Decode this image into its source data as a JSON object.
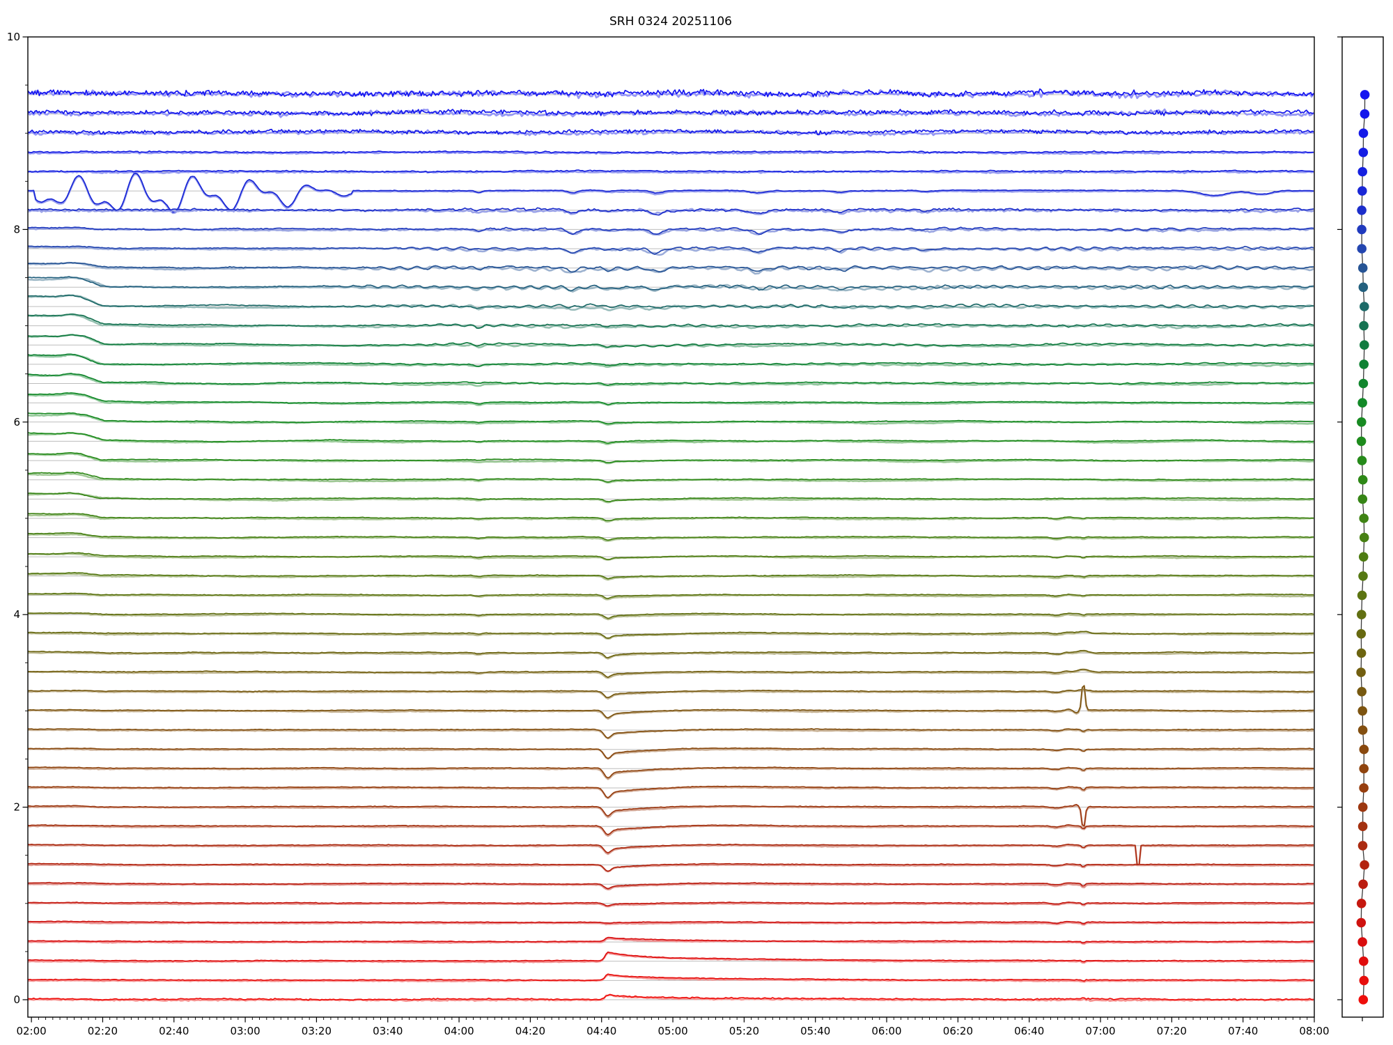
{
  "page": {
    "title": "SRH 0324 20251106"
  },
  "chart_data": {
    "type": "line",
    "title": "SRH 0324 20251106",
    "description": "Multi-frequency correlation time-series plot (48 stacked traces, blue=top frequency to red=bottom) with a side panel of per-trace mean dots",
    "x_tick_labels": [
      "02:00",
      "02:20",
      "02:40",
      "03:00",
      "03:20",
      "03:40",
      "04:00",
      "04:20",
      "04:40",
      "05:00",
      "05:20",
      "05:40",
      "06:00",
      "06:20",
      "06:40",
      "07:00",
      "07:20",
      "07:40",
      "08:00"
    ],
    "x_minor_tick_minutes": 2,
    "x_range_minutes": {
      "start": 119,
      "end": 480
    },
    "y_ticks": [
      0,
      2,
      4,
      6,
      8,
      10
    ],
    "y_minor_tick": 0.5,
    "ylim": [
      -0.18,
      10.0
    ],
    "n_traces": 48,
    "trace_top_value": 9.4,
    "trace_offset_step": 0.2,
    "baseline_color": "#bdbdbd",
    "axis_color": "#000000",
    "side_panel_line_color": "#3a3a3a",
    "dot_radius": 6.8,
    "color_stops": [
      [
        0,
        "#1414f0"
      ],
      [
        4,
        "#1520e0"
      ],
      [
        6,
        "#1c2ecb"
      ],
      [
        8,
        "#2446b0"
      ],
      [
        9,
        "#265495"
      ],
      [
        10,
        "#23607e"
      ],
      [
        11,
        "#1d6a68"
      ],
      [
        12,
        "#167352"
      ],
      [
        13,
        "#117b40"
      ],
      [
        14,
        "#0f8233"
      ],
      [
        16,
        "#128927"
      ],
      [
        18,
        "#1e8b1d"
      ],
      [
        20,
        "#2e8817"
      ],
      [
        23,
        "#478013"
      ],
      [
        26,
        "#5c7411"
      ],
      [
        29,
        "#6c6410"
      ],
      [
        32,
        "#7d5410"
      ],
      [
        35,
        "#8f440f"
      ],
      [
        38,
        "#a33110"
      ],
      [
        41,
        "#bb1d10"
      ],
      [
        44,
        "#d90d0e"
      ],
      [
        47,
        "#ee0e0b"
      ]
    ],
    "trace_fields": [
      "value",
      "hf_noise",
      "slow_drift",
      "wiggle_amp",
      "start_hump",
      "dip_0442_amp",
      "spike_0655_amp",
      "upper_dip_factor",
      "special"
    ],
    "traces": [
      [
        9.4,
        0.03,
        0.013,
        0,
        0,
        0,
        0,
        0,
        0
      ],
      [
        9.2,
        0.024,
        0.012,
        0,
        0,
        0,
        0,
        0,
        0
      ],
      [
        9.0,
        0.019,
        0.012,
        0,
        0,
        0,
        0,
        0,
        0
      ],
      [
        8.8,
        0.008,
        0.006,
        0,
        0,
        0,
        0,
        0,
        0
      ],
      [
        8.6,
        0.007,
        0.006,
        0,
        0,
        0,
        0,
        0,
        0
      ],
      [
        8.4,
        0.004,
        0.004,
        0,
        0,
        -0.01,
        0,
        0.55,
        1
      ],
      [
        8.2,
        0.01,
        0.006,
        0.007,
        0,
        -0.012,
        0,
        0.8,
        0
      ],
      [
        8.0,
        0.006,
        0.007,
        0.009,
        0.012,
        -0.015,
        0,
        1.0,
        0
      ],
      [
        7.8,
        0.005,
        0.008,
        0.012,
        0.02,
        -0.018,
        0,
        1.0,
        0
      ],
      [
        7.6,
        0.0045,
        0.009,
        0.016,
        0.045,
        -0.02,
        0,
        0.85,
        0
      ],
      [
        7.4,
        0.004,
        0.009,
        0.016,
        0.1,
        -0.02,
        0,
        0.55,
        0
      ],
      [
        7.2,
        0.004,
        0.009,
        0.013,
        0.11,
        -0.022,
        0,
        0.35,
        0
      ],
      [
        7.0,
        0.004,
        0.009,
        0.01,
        0.11,
        -0.024,
        0,
        0.2,
        0
      ],
      [
        6.8,
        0.0035,
        0.008,
        0.008,
        0.105,
        -0.025,
        0,
        0.1,
        0
      ],
      [
        6.6,
        0.0035,
        0.008,
        0.006,
        0.1,
        -0.025,
        0,
        0,
        0
      ],
      [
        6.4,
        0.0035,
        0.008,
        0.004,
        0.095,
        -0.025,
        0,
        0,
        0
      ],
      [
        6.2,
        0.0035,
        0.008,
        0,
        0.09,
        -0.025,
        0,
        0,
        0
      ],
      [
        6.0,
        0.0035,
        0.008,
        0,
        0.085,
        -0.026,
        0,
        0,
        0
      ],
      [
        5.8,
        0.0035,
        0.008,
        0,
        0.08,
        -0.026,
        0,
        0,
        0
      ],
      [
        5.6,
        0.0035,
        0.007,
        0,
        0.072,
        -0.028,
        0,
        0,
        0
      ],
      [
        5.4,
        0.0035,
        0.007,
        0,
        0.065,
        -0.028,
        0,
        0,
        0
      ],
      [
        5.2,
        0.0035,
        0.007,
        0,
        0.055,
        -0.03,
        0,
        0,
        0
      ],
      [
        5.0,
        0.0035,
        0.006,
        0,
        0.045,
        -0.03,
        -0.01,
        0,
        0
      ],
      [
        4.8,
        0.0035,
        0.006,
        0,
        0.038,
        -0.032,
        -0.01,
        0,
        0
      ],
      [
        4.6,
        0.0035,
        0.006,
        0,
        0.03,
        -0.032,
        -0.012,
        0,
        0
      ],
      [
        4.4,
        0.0035,
        0.006,
        0,
        0.024,
        -0.035,
        -0.012,
        0,
        0
      ],
      [
        4.2,
        0.0035,
        0.005,
        0,
        0.019,
        -0.04,
        -0.012,
        0,
        0
      ],
      [
        4.0,
        0.0035,
        0.005,
        0,
        0.015,
        -0.045,
        -0.014,
        0,
        0
      ],
      [
        3.8,
        0.0035,
        0.005,
        0,
        0.012,
        -0.05,
        0.02,
        0,
        0
      ],
      [
        3.6,
        0.0035,
        0.005,
        0,
        0.01,
        -0.055,
        0.024,
        0,
        0
      ],
      [
        3.4,
        0.0035,
        0.004,
        0,
        0.008,
        -0.06,
        0.03,
        0,
        0
      ],
      [
        3.2,
        0.0035,
        0.004,
        0,
        0.007,
        -0.07,
        0.02,
        0,
        0
      ],
      [
        3.0,
        0.0035,
        0.004,
        0,
        0.006,
        -0.08,
        0.3,
        0,
        0
      ],
      [
        2.8,
        0.0035,
        0.004,
        0,
        0.006,
        -0.09,
        -0.02,
        0,
        0
      ],
      [
        2.6,
        0.0035,
        0.004,
        0,
        0.006,
        -0.1,
        -0.022,
        0,
        0
      ],
      [
        2.4,
        0.0035,
        0.0035,
        0,
        0.006,
        -0.105,
        -0.025,
        0,
        0
      ],
      [
        2.2,
        0.0035,
        0.0035,
        0,
        0.006,
        -0.105,
        -0.03,
        0,
        0
      ],
      [
        2.0,
        0.0035,
        0.0035,
        0,
        0.006,
        -0.1,
        -0.24,
        0,
        0
      ],
      [
        1.8,
        0.0035,
        0.0035,
        0,
        0.006,
        -0.095,
        -0.03,
        0,
        0
      ],
      [
        1.6,
        0.0035,
        0.003,
        0,
        0.006,
        -0.085,
        -0.026,
        0,
        2
      ],
      [
        1.4,
        0.0035,
        0.003,
        0,
        0.006,
        -0.07,
        -0.022,
        0,
        0
      ],
      [
        1.2,
        0.0035,
        0.003,
        0,
        0.006,
        -0.05,
        -0.03,
        0,
        0
      ],
      [
        1.0,
        0.0035,
        0.003,
        0,
        0.006,
        -0.03,
        -0.02,
        0,
        0
      ],
      [
        0.8,
        0.0035,
        0.003,
        0,
        0.006,
        -0.012,
        -0.02,
        0,
        0
      ],
      [
        0.6,
        0.0035,
        0.003,
        0,
        0.005,
        0.04,
        -0.015,
        0,
        0
      ],
      [
        0.4,
        0.004,
        0.003,
        0,
        0.005,
        0.09,
        -0.015,
        0,
        0
      ],
      [
        0.2,
        0.004,
        0.003,
        0,
        0.005,
        0.06,
        -0.01,
        0,
        0
      ],
      [
        0.0,
        0.007,
        0.003,
        0,
        0.005,
        0.05,
        0.01,
        0,
        0
      ]
    ],
    "events": [
      {
        "time": "02:01-03:27",
        "description": "large slow oscillations on the 8.4 trace"
      },
      {
        "time": "02:00-02:20",
        "description": "elevated start decaying to baseline on mid traces"
      },
      {
        "time": "04:05",
        "description": "small synchronous dip on upper and middle traces"
      },
      {
        "time": "04:32",
        "description": "dip on upper traces"
      },
      {
        "time": "04:55",
        "description": "dip on upper traces"
      },
      {
        "time": "05:24",
        "description": "dip on upper traces"
      },
      {
        "time": "05:47",
        "description": "dip on upper traces"
      },
      {
        "time": "04:42",
        "description": "sharp dip with slow recovery on middle/lower traces; upward bump on the lowest traces"
      },
      {
        "time": "06:55",
        "description": "sharp spike column on lower traces; large up-spike at trace 3.0 and down-spike at trace 2.0"
      },
      {
        "time": "07:10",
        "description": "single dropout glitch on the 1.6 trace"
      },
      {
        "time": "07:30-07:50",
        "description": "small dips on the 8.4 trace"
      }
    ]
  }
}
